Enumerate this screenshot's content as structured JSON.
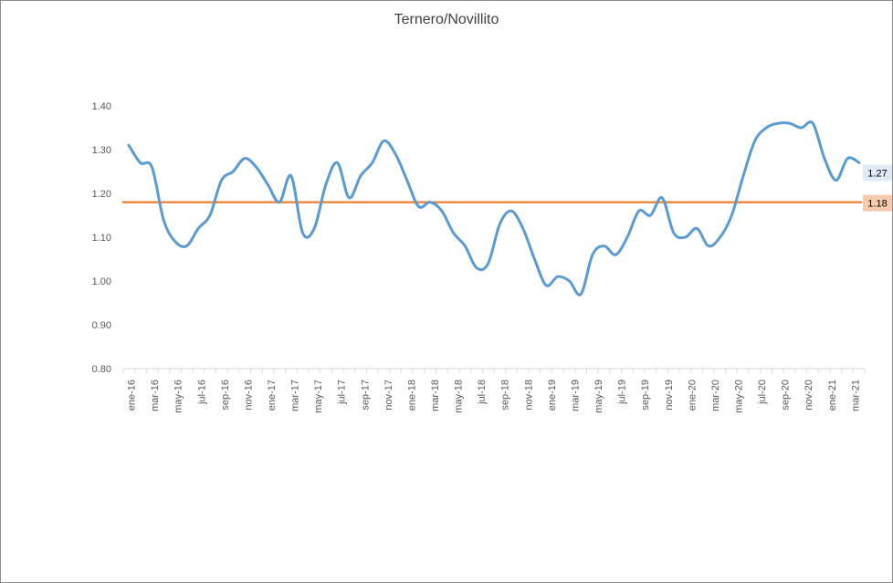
{
  "chart_data": {
    "type": "line",
    "title": "Ternero/Novillito",
    "xlabel": "",
    "ylabel": "",
    "ylim": [
      0.8,
      1.4
    ],
    "yticks": [
      "0.80",
      "0.90",
      "1.00",
      "1.10",
      "1.20",
      "1.30",
      "1.40"
    ],
    "xtick_labels": [
      "ene-16",
      "mar-16",
      "may-16",
      "jul-16",
      "sep-16",
      "nov-16",
      "ene-17",
      "mar-17",
      "may-17",
      "jul-17",
      "sep-17",
      "nov-17",
      "ene-18",
      "mar-18",
      "may-18",
      "jul-18",
      "sep-18",
      "nov-18",
      "ene-19",
      "mar-19",
      "may-19",
      "jul-19",
      "sep-19",
      "nov-19",
      "ene-20",
      "mar-20",
      "may-20",
      "jul-20",
      "sep-20",
      "nov-20",
      "ene-21",
      "mar-21"
    ],
    "grid": false,
    "legend": "none",
    "series": [
      {
        "color": "#5b9bd5",
        "smooth": true,
        "values": [
          1.31,
          1.27,
          1.26,
          1.14,
          1.09,
          1.08,
          1.12,
          1.15,
          1.23,
          1.25,
          1.28,
          1.26,
          1.22,
          1.18,
          1.24,
          1.11,
          1.12,
          1.22,
          1.27,
          1.19,
          1.24,
          1.27,
          1.32,
          1.29,
          1.23,
          1.17,
          1.18,
          1.16,
          1.11,
          1.08,
          1.03,
          1.04,
          1.13,
          1.16,
          1.12,
          1.05,
          0.99,
          1.01,
          1.0,
          0.97,
          1.06,
          1.08,
          1.06,
          1.1,
          1.16,
          1.15,
          1.19,
          1.11,
          1.1,
          1.12,
          1.08,
          1.1,
          1.15,
          1.24,
          1.32,
          1.35,
          1.36,
          1.36,
          1.35,
          1.36,
          1.28,
          1.23,
          1.28,
          1.27
        ],
        "end_label": "1.27",
        "end_label_bg": "#deebf7"
      },
      {
        "color": "#ed7d31",
        "values": "constant",
        "constant": 1.18,
        "end_label": "1.18",
        "end_label_bg": "#f8cbad"
      }
    ]
  }
}
